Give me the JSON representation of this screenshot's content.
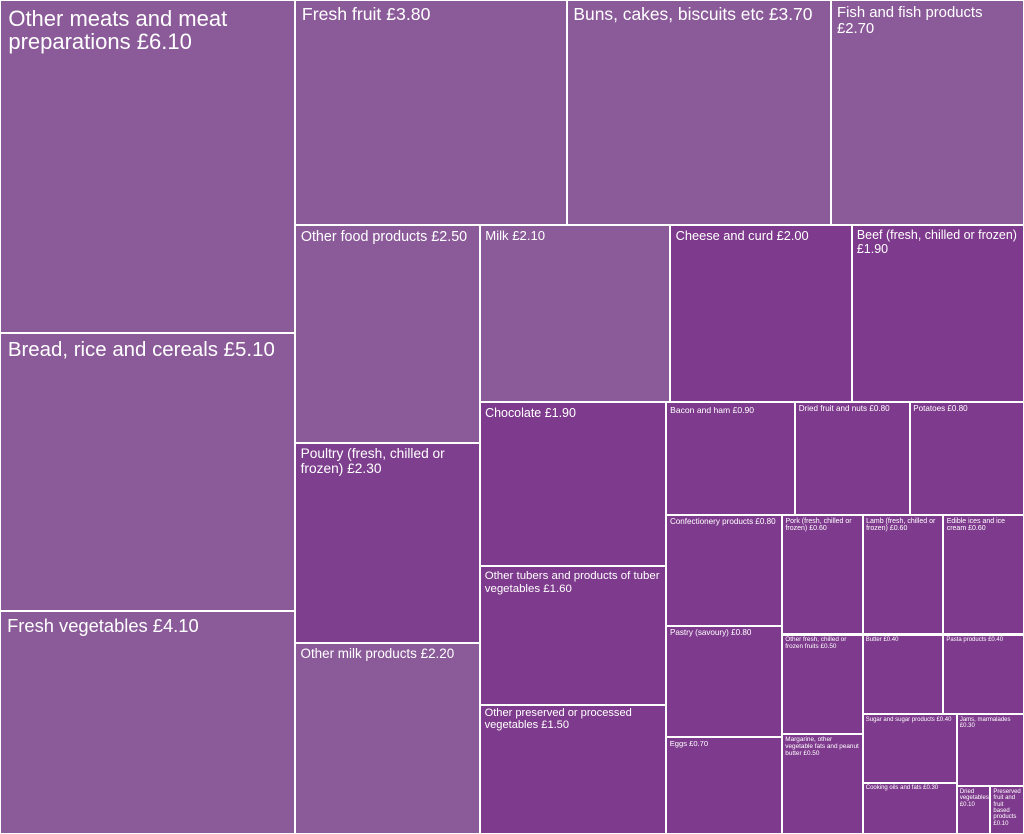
{
  "chart_data": {
    "type": "treemap",
    "categories": [
      "Other meats and meat preparations",
      "Bread, rice and cereals",
      "Fresh vegetables",
      "Fresh fruit",
      "Buns, cakes, biscuits etc",
      "Fish and fish products",
      "Other food products",
      "Poultry (fresh, chilled or frozen)",
      "Other milk products",
      "Milk",
      "Cheese and curd",
      "Beef (fresh, chilled or frozen)",
      "Chocolate",
      "Other tubers and products of tuber vegetables",
      "Other preserved or processed vegetables",
      "Bacon and ham",
      "Dried fruit and nuts",
      "Potatoes",
      "Confectionery products",
      "Pastry (savoury)",
      "Eggs",
      "Pork (fresh, chilled or frozen)",
      "Lamb (fresh, chilled or frozen)",
      "Edible ices and ice cream",
      "Other fresh, chilled or frozen fruits",
      "Margarine, other vegetable fats and peanut butter",
      "Butter",
      "Pasta products",
      "Sugar and sugar products",
      "Cooking oils and fats",
      "Jams, marmalades",
      "Dried vegetables",
      "Preserved fruit and fruit based products"
    ],
    "values": [
      6.1,
      5.1,
      4.1,
      3.8,
      3.7,
      2.7,
      2.5,
      2.3,
      2.2,
      2.1,
      2.0,
      1.9,
      1.9,
      1.6,
      1.5,
      0.9,
      0.8,
      0.8,
      0.8,
      0.8,
      0.7,
      0.6,
      0.6,
      0.6,
      0.5,
      0.5,
      0.4,
      0.4,
      0.4,
      0.3,
      0.3,
      0.1,
      0.1
    ],
    "value_labels": [
      "£6.10",
      "£5.10",
      "£4.10",
      "£3.80",
      "£3.70",
      "£2.70",
      "£2.50",
      "£2.30",
      "£2.20",
      "£2.10",
      "£2.00",
      "£1.90",
      "£1.90",
      "£1.60",
      "£1.50",
      "£0.90",
      "£0.80",
      "£0.80",
      "£0.80",
      "£0.80",
      "£0.70",
      "£0.60",
      "£0.60",
      "£0.60",
      "£0.50",
      "£0.50",
      "£0.40",
      "£0.40",
      "£0.40",
      "£0.30",
      "£0.30",
      "£0.10",
      "£0.10"
    ],
    "colors": [
      "#8b5a99",
      "#8b5a99",
      "#8b5a99",
      "#8b5a99",
      "#8b5a99",
      "#8b5a99",
      "#8b5a99",
      "#7e3f8e",
      "#8b5a99",
      "#8b5a99",
      "#7e3a8c",
      "#7e3a8c",
      "#7e3a8c",
      "#7e3a8c",
      "#7e3a8c",
      "#7e3a8c",
      "#7e3a8c",
      "#7e3a8c",
      "#7e3a8c",
      "#7e3a8c",
      "#7e3a8c",
      "#7e3a8c",
      "#7e3a8c",
      "#7e3a8c",
      "#7e3a8c",
      "#7e3a8c",
      "#7e3a8c",
      "#7e3a8c",
      "#7e3a8c",
      "#7e3a8c",
      "#7e3a8c",
      "#7e3a8c",
      "#7e3a8c"
    ]
  }
}
